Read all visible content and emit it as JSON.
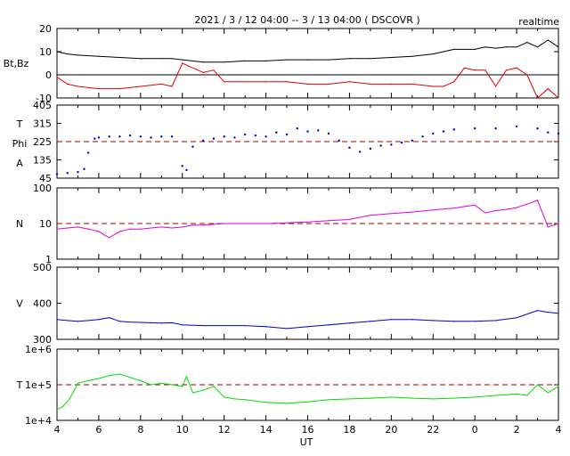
{
  "header": {
    "title": "2021 / 3 / 12  04:00 -- 3 / 13  04:00 ( DSCOVR )",
    "mode": "realtime"
  },
  "colors": {
    "bt": "#000000",
    "bz": "#e00000",
    "phi": "#0000c8",
    "density": "#e000e0",
    "speed": "#0000c8",
    "temperature": "#00e000",
    "reference": "#a00000"
  },
  "chart_data": [
    {
      "type": "line",
      "ylabel": "Bt,Bz",
      "yticks": [
        "20",
        "10",
        "0",
        "-10"
      ],
      "ylim": [
        -10,
        20
      ],
      "zero_line": 0,
      "series": [
        {
          "key": "bt",
          "x": [
            4.0,
            4.5,
            5.0,
            6.0,
            7.0,
            8.0,
            9.0,
            9.5,
            10.0,
            11.0,
            12.0,
            13.0,
            14.0,
            15.0,
            16.0,
            17.0,
            18.0,
            19.0,
            20.0,
            21.0,
            22.0,
            22.5,
            23.0,
            24.0,
            24.5,
            25.0,
            25.5,
            26.0,
            26.5,
            27.0,
            27.5,
            28.0
          ],
          "y": [
            10,
            9,
            8.5,
            8,
            7.5,
            7,
            7,
            7,
            6.5,
            5.5,
            5.5,
            6,
            6,
            6.5,
            6.5,
            6.5,
            7,
            7,
            7.5,
            8,
            9,
            10,
            11,
            11,
            12,
            11.5,
            12,
            12,
            14,
            12,
            15,
            12
          ]
        },
        {
          "key": "bz",
          "x": [
            4.0,
            4.5,
            5.0,
            6.0,
            7.0,
            8.0,
            9.0,
            9.5,
            10.0,
            11.0,
            11.5,
            12.0,
            13.0,
            14.0,
            15.0,
            16.0,
            17.0,
            18.0,
            19.0,
            20.0,
            21.0,
            22.0,
            22.5,
            23.0,
            23.5,
            24.0,
            24.5,
            25.0,
            25.5,
            26.0,
            26.5,
            27.0,
            27.5,
            28.0
          ],
          "y": [
            -1,
            -4,
            -5,
            -6,
            -6,
            -5,
            -4,
            -5,
            5,
            1,
            2,
            -3,
            -3,
            -3,
            -3,
            -4,
            -4,
            -3,
            -4,
            -4,
            -4,
            -5,
            -5,
            -3,
            3,
            2,
            2,
            -5,
            2,
            3,
            0,
            -10,
            -6,
            -10
          ]
        }
      ]
    },
    {
      "type": "scatter",
      "ylabel": [
        "T",
        "Phi",
        "A"
      ],
      "yticks": [
        "405",
        "315",
        "225",
        "135",
        "45"
      ],
      "ylim": [
        45,
        405
      ],
      "reference_line": 225,
      "series": [
        {
          "key": "phi",
          "x": [
            4.0,
            4.5,
            5.0,
            5.3,
            5.5,
            5.8,
            6.0,
            6.5,
            7.0,
            7.5,
            8.0,
            8.5,
            9.0,
            9.5,
            10.0,
            10.2,
            10.5,
            11.0,
            11.5,
            12.0,
            12.5,
            13.0,
            13.5,
            14.0,
            14.5,
            15.0,
            15.5,
            16.0,
            16.5,
            17.0,
            17.5,
            18.0,
            18.5,
            19.0,
            19.5,
            20.0,
            20.5,
            21.0,
            21.5,
            22.0,
            22.5,
            23.0,
            24.0,
            25.0,
            26.0,
            27.0,
            27.5,
            28.0
          ],
          "y": [
            65,
            70,
            75,
            90,
            170,
            240,
            245,
            250,
            250,
            255,
            250,
            245,
            250,
            250,
            105,
            85,
            200,
            230,
            240,
            250,
            245,
            260,
            255,
            250,
            270,
            260,
            290,
            275,
            280,
            265,
            230,
            195,
            175,
            190,
            205,
            210,
            220,
            230,
            250,
            265,
            275,
            285,
            290,
            290,
            300,
            290,
            270,
            265
          ]
        }
      ]
    },
    {
      "type": "line",
      "ylabel": "N",
      "yscale": "log",
      "yticks": [
        "100",
        "10",
        "1"
      ],
      "ylim": [
        1,
        100
      ],
      "reference_line": 10,
      "series": [
        {
          "key": "density",
          "x": [
            4.0,
            4.5,
            5.0,
            5.5,
            6.0,
            6.5,
            7.0,
            7.5,
            8.0,
            8.5,
            9.0,
            9.5,
            10.0,
            10.5,
            11.0,
            12.0,
            13.0,
            14.0,
            15.0,
            16.0,
            17.0,
            18.0,
            19.0,
            20.0,
            21.0,
            22.0,
            23.0,
            23.5,
            24.0,
            24.5,
            25.0,
            25.5,
            26.0,
            26.5,
            27.0,
            27.5,
            28.0
          ],
          "y": [
            7,
            7.5,
            8,
            7,
            6,
            4,
            6,
            7,
            7,
            7.5,
            8,
            7.5,
            8,
            9,
            9,
            10,
            10,
            10,
            10.5,
            11,
            12,
            13,
            17,
            19,
            21,
            24,
            27,
            30,
            33,
            20,
            23,
            25,
            28,
            35,
            45,
            8,
            10
          ]
        }
      ]
    },
    {
      "type": "line",
      "ylabel": "V",
      "yticks": [
        "500",
        "400",
        "300"
      ],
      "ylim": [
        300,
        500
      ],
      "series": [
        {
          "key": "speed",
          "x": [
            4.0,
            4.5,
            5.0,
            5.5,
            6.0,
            6.5,
            7.0,
            7.5,
            8.0,
            8.5,
            9.0,
            9.5,
            10.0,
            11.0,
            12.0,
            13.0,
            14.0,
            15.0,
            16.0,
            17.0,
            18.0,
            19.0,
            20.0,
            21.0,
            22.0,
            23.0,
            24.0,
            25.0,
            26.0,
            27.0,
            27.5,
            28.0
          ],
          "y": [
            355,
            352,
            350,
            352,
            355,
            360,
            350,
            348,
            347,
            346,
            345,
            346,
            340,
            338,
            338,
            338,
            335,
            330,
            335,
            340,
            345,
            350,
            355,
            355,
            352,
            350,
            350,
            352,
            360,
            380,
            375,
            372
          ]
        }
      ]
    },
    {
      "type": "line",
      "ylabel": "T",
      "yscale": "log",
      "yticks": [
        "1e+6",
        "1e+5",
        "1e+4"
      ],
      "ylim": [
        10000,
        1000000
      ],
      "reference_line": 100000,
      "series": [
        {
          "key": "temperature",
          "x": [
            4.0,
            4.3,
            4.6,
            5.0,
            5.5,
            6.0,
            6.5,
            7.0,
            7.5,
            8.0,
            8.5,
            9.0,
            9.5,
            10.0,
            10.2,
            10.5,
            11.0,
            11.5,
            12.0,
            12.5,
            13.0,
            14.0,
            15.0,
            16.0,
            17.0,
            18.0,
            19.0,
            20.0,
            21.0,
            22.0,
            23.0,
            24.0,
            25.0,
            26.0,
            26.5,
            27.0,
            27.5,
            28.0
          ],
          "y": [
            20000,
            25000,
            40000,
            110000,
            130000,
            150000,
            180000,
            200000,
            160000,
            130000,
            100000,
            110000,
            100000,
            90000,
            170000,
            60000,
            70000,
            90000,
            45000,
            40000,
            38000,
            32000,
            30000,
            33000,
            38000,
            40000,
            42000,
            45000,
            42000,
            40000,
            42000,
            45000,
            50000,
            55000,
            50000,
            100000,
            60000,
            90000
          ]
        }
      ]
    }
  ],
  "x_axis": {
    "label": "UT",
    "ticks": [
      "4",
      "6",
      "8",
      "10",
      "12",
      "14",
      "16",
      "18",
      "20",
      "22",
      "0",
      "2",
      "4"
    ]
  }
}
